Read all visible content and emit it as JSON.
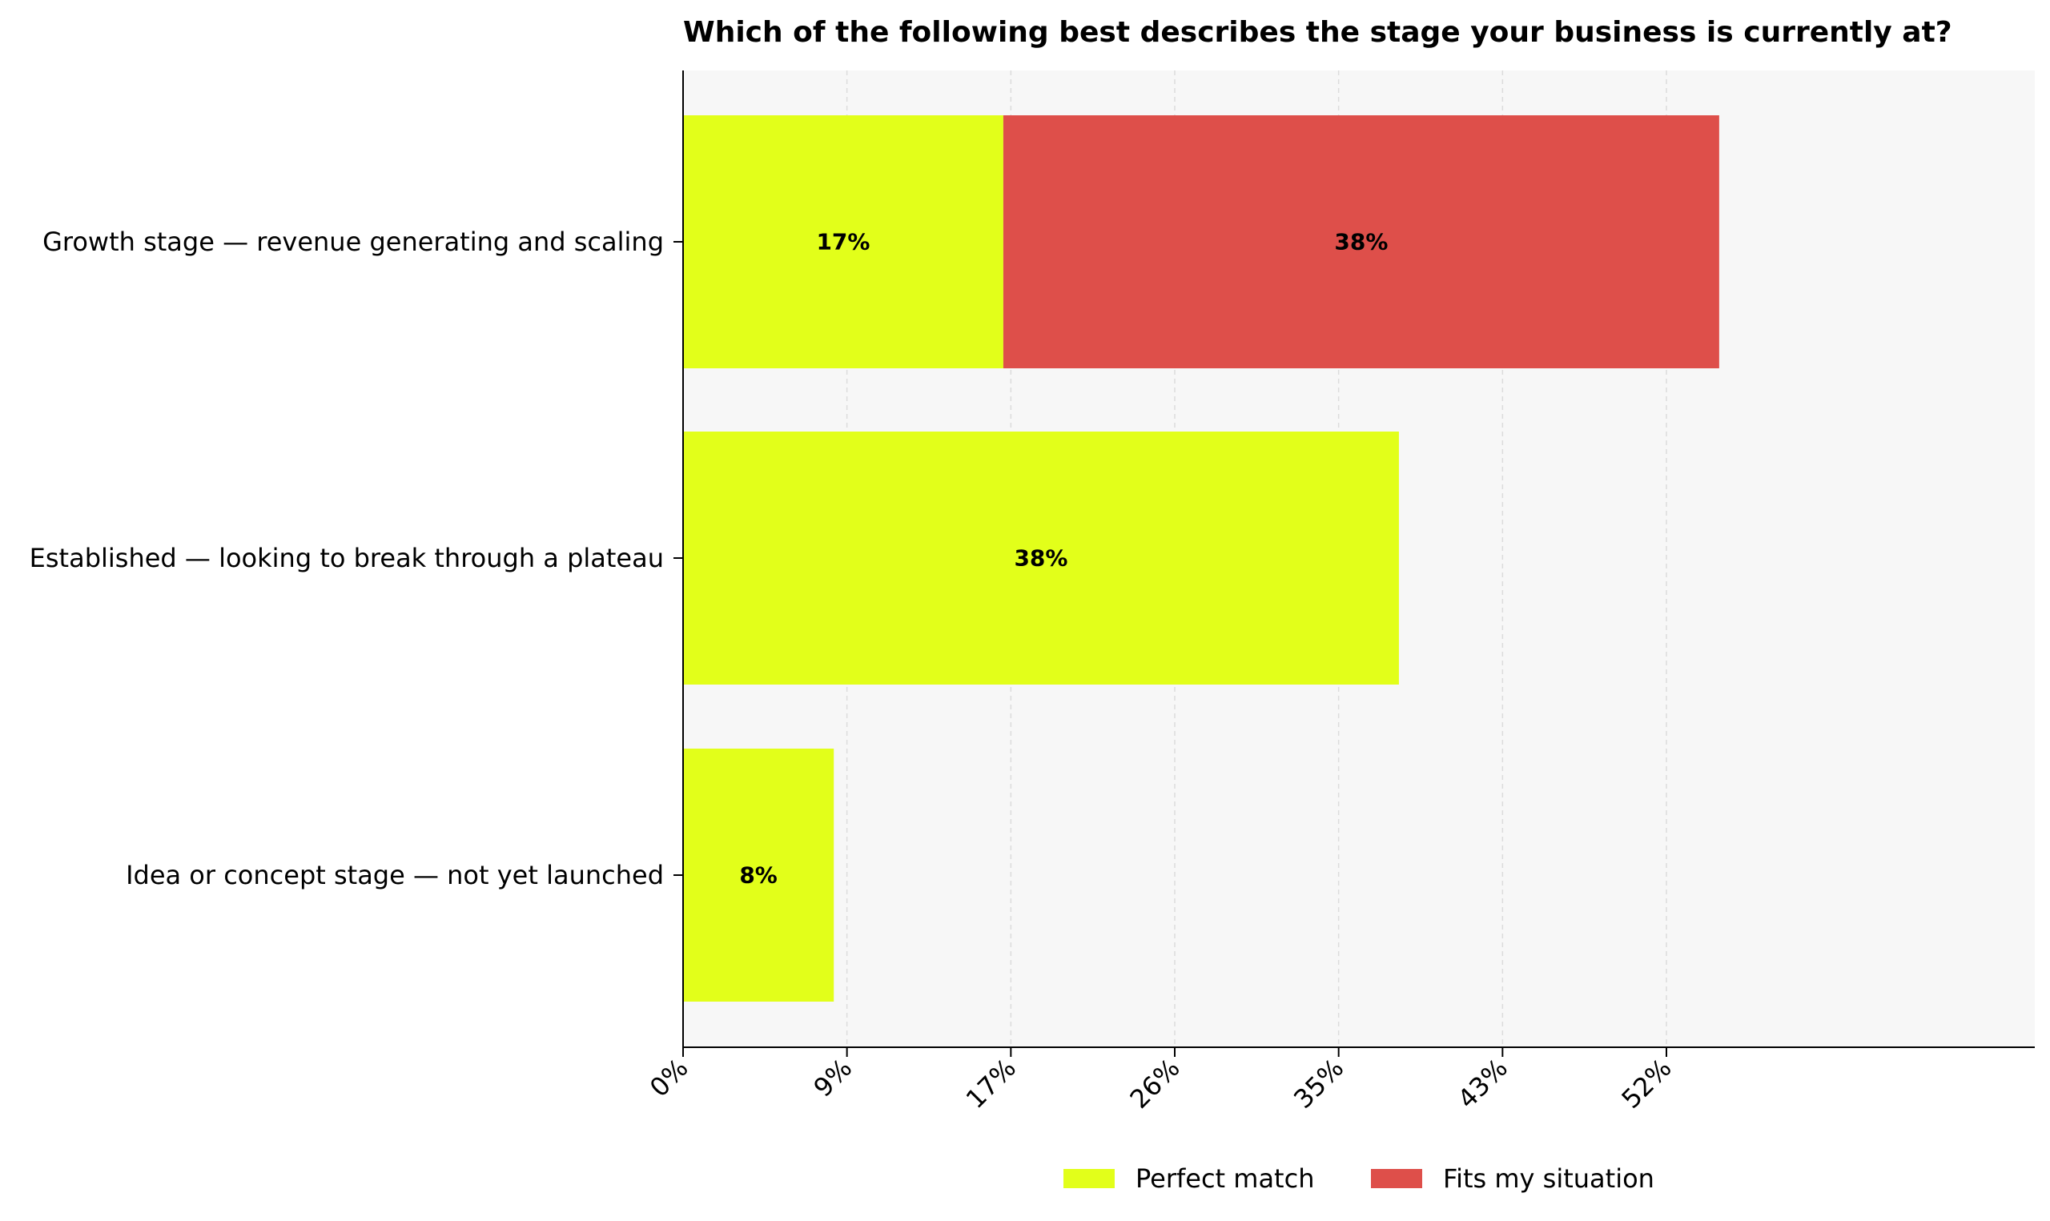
{
  "chart_data": {
    "type": "bar",
    "orientation": "horizontal",
    "stacked": true,
    "title": "Which of the following best describes the stage your business is currently at?",
    "xlabel": "",
    "ylabel": "",
    "categories": [
      "Growth stage — revenue generating and scaling",
      "Established — looking to break through a plateau",
      "Idea or concept stage — not yet launched"
    ],
    "series": [
      {
        "name": "Perfect match",
        "color": "#e2ff1a",
        "values": [
          17,
          38,
          8
        ],
        "labels": [
          "17%",
          "38%",
          "8%"
        ]
      },
      {
        "name": "Fits my situation",
        "color": "#de4f4a",
        "values": [
          38,
          0,
          0
        ],
        "labels": [
          "38%",
          "",
          ""
        ]
      }
    ],
    "xticks": [
      0,
      8.7,
      17.4,
      26.1,
      34.8,
      43.5,
      52.2
    ],
    "xtick_labels": [
      "0%",
      "9%",
      "17%",
      "26%",
      "35%",
      "43%",
      "52%"
    ],
    "xlim": [
      0,
      60
    ],
    "grid": "vertical dashed",
    "legend_position": "bottom-center",
    "plot_background": "#f7f7f7"
  }
}
